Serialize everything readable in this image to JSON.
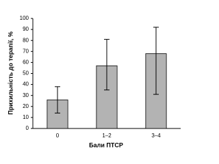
{
  "chart_data": {
    "type": "bar",
    "xlabel": "Бали ПТСР",
    "ylabel": "Прихильність до терапії, %",
    "categories": [
      "0",
      "1–2",
      "3–4"
    ],
    "values": [
      26,
      57,
      68
    ],
    "error_minus": [
      12,
      22,
      37
    ],
    "error_plus": [
      12,
      24,
      24
    ],
    "color": "#b3b3b3",
    "ylim": [
      0,
      100
    ],
    "yticks": [
      0,
      10,
      20,
      30,
      40,
      50,
      60,
      70,
      80,
      90,
      100
    ],
    "grid": false
  }
}
